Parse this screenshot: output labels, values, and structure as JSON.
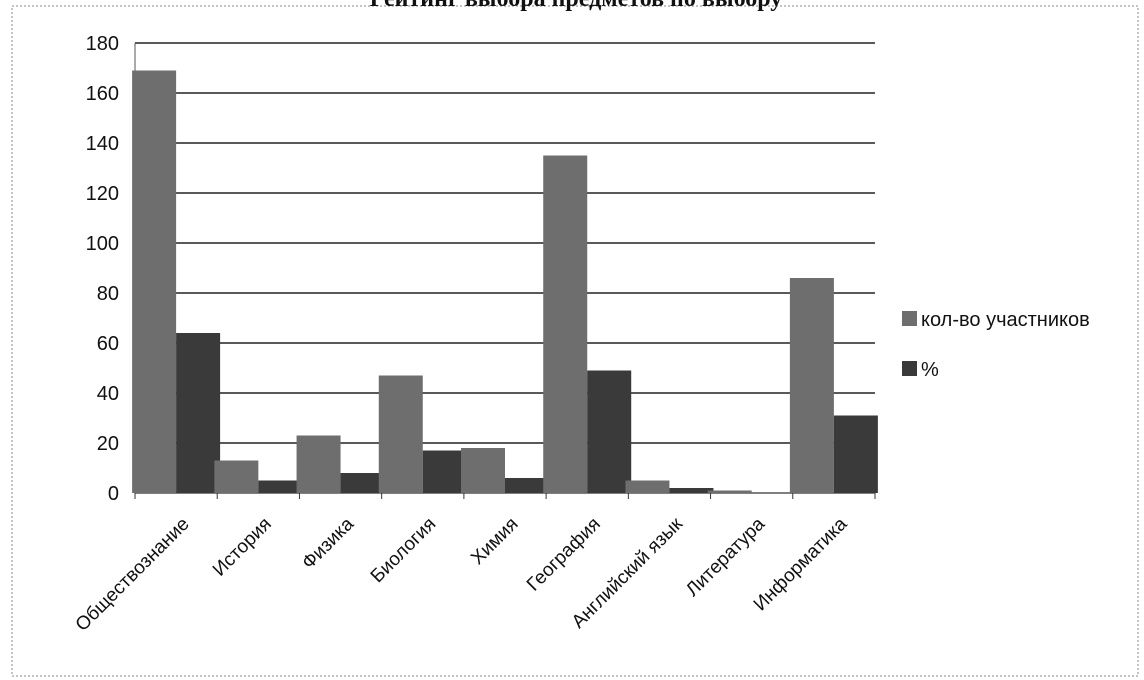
{
  "chart_data": {
    "type": "bar",
    "title": "Рейтинг выбора предметов по выбору",
    "categories": [
      "Обществознание",
      "История",
      "Физика",
      "Биология",
      "Химия",
      "География",
      "Английский язык",
      "Литература",
      "Информатика"
    ],
    "series": [
      {
        "name": "кол-во участников",
        "values": [
          169,
          13,
          23,
          47,
          18,
          135,
          5,
          1,
          86
        ],
        "color": "#6e6e6e"
      },
      {
        "name": "%",
        "values": [
          64,
          5,
          8,
          17,
          6,
          49,
          2,
          0,
          31
        ],
        "color": "#3a3a3a"
      }
    ],
    "y_ticks": [
      "0",
      "20",
      "40",
      "60",
      "80",
      "100",
      "120",
      "140",
      "160",
      "180"
    ],
    "ylim": [
      0,
      180
    ],
    "grid": true,
    "legend_position": "right"
  }
}
